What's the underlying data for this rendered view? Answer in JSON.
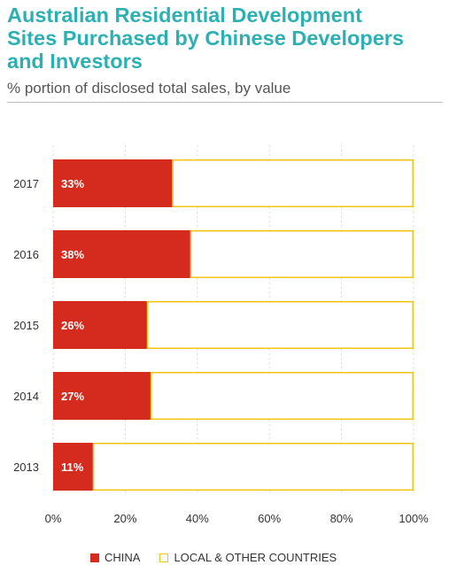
{
  "title_lines": [
    "Australian Residential Development",
    "Sites Purchased by Chinese Developers",
    "and Investors"
  ],
  "subtitle": "% portion of disclosed total sales, by value",
  "colors": {
    "title": "#2bb0b4",
    "china": "#d52b1e",
    "other_border": "#f2c514"
  },
  "chart_data": {
    "type": "bar",
    "orientation": "horizontal",
    "stacked": true,
    "categories": [
      "2017",
      "2016",
      "2015",
      "2014",
      "2013"
    ],
    "series": [
      {
        "name": "CHINA",
        "values": [
          33,
          38,
          26,
          27,
          11
        ],
        "labels": [
          "33%",
          "38%",
          "26%",
          "27%",
          "11%"
        ]
      },
      {
        "name": "LOCAL & OTHER COUNTRIES",
        "values": [
          67,
          62,
          74,
          73,
          89
        ]
      }
    ],
    "xlim": [
      0,
      100
    ],
    "xticks": [
      "0%",
      "20%",
      "40%",
      "60%",
      "80%",
      "100%"
    ],
    "grid": true,
    "legend_position": "bottom"
  }
}
